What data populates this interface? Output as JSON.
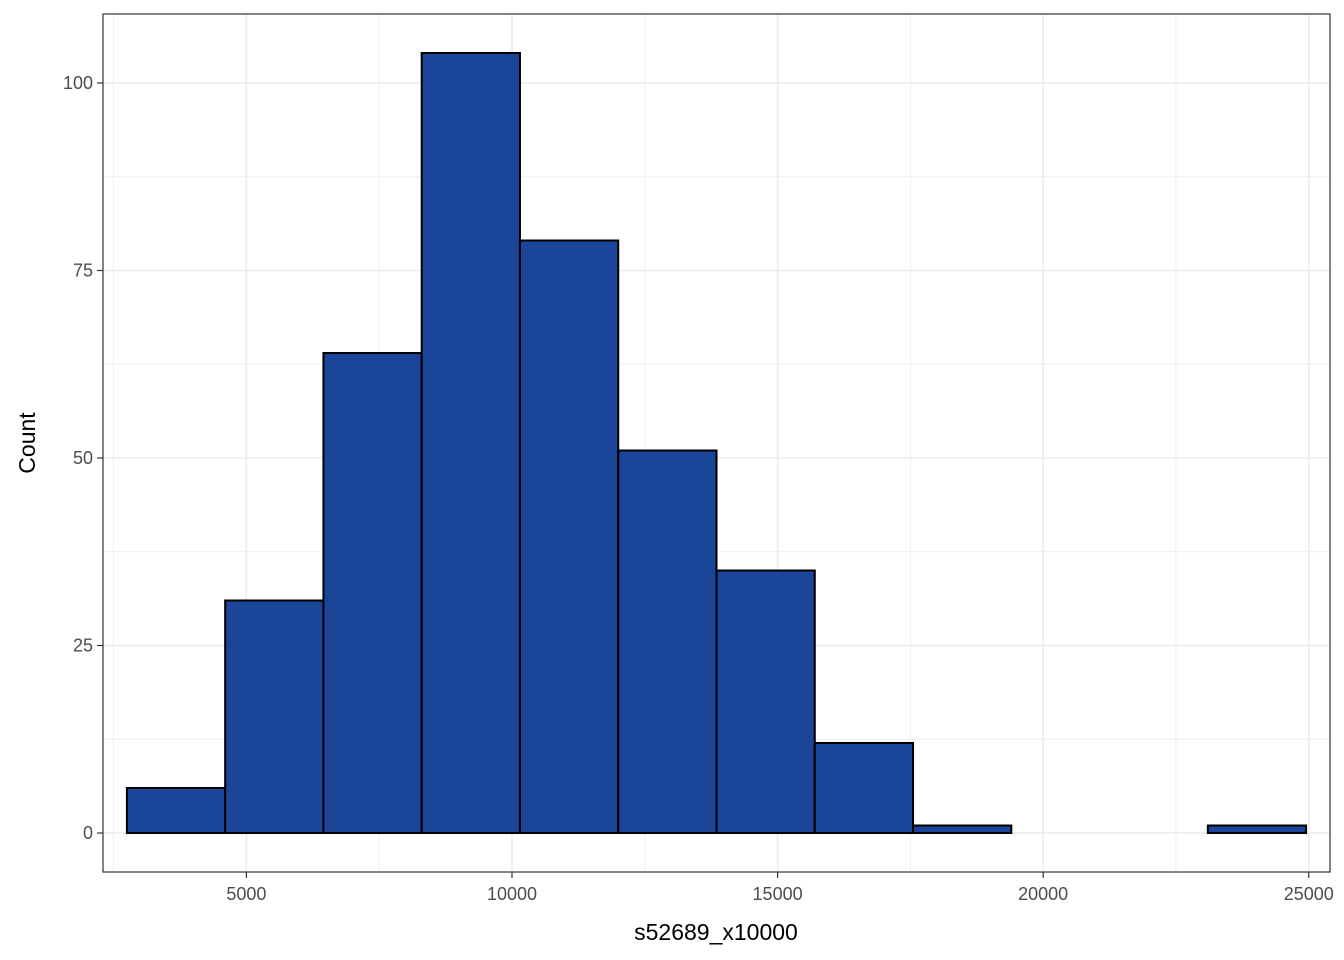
{
  "chart_data": {
    "type": "bar",
    "subtype": "histogram",
    "title": "",
    "xlabel": "s52689_x10000",
    "ylabel": "Count",
    "xlim": [
      2300,
      25400
    ],
    "ylim": [
      -5.2,
      109.2
    ],
    "x_ticks": [
      5000,
      10000,
      15000,
      20000,
      25000
    ],
    "x_tick_labels": [
      "5000",
      "10000",
      "15000",
      "20000",
      "25000"
    ],
    "y_ticks": [
      0,
      25,
      50,
      75,
      100
    ],
    "y_tick_labels": [
      "0",
      "25",
      "50",
      "75",
      "100"
    ],
    "bins": [
      {
        "x0": 2750,
        "x1": 4600,
        "count": 6
      },
      {
        "x0": 4600,
        "x1": 6450,
        "count": 31
      },
      {
        "x0": 6450,
        "x1": 8300,
        "count": 64
      },
      {
        "x0": 8300,
        "x1": 10150,
        "count": 104
      },
      {
        "x0": 10150,
        "x1": 12000,
        "count": 79
      },
      {
        "x0": 12000,
        "x1": 13850,
        "count": 51
      },
      {
        "x0": 13850,
        "x1": 15700,
        "count": 35
      },
      {
        "x0": 15700,
        "x1": 17550,
        "count": 12
      },
      {
        "x0": 17550,
        "x1": 19400,
        "count": 1
      },
      {
        "x0": 19400,
        "x1": 21250,
        "count": 0
      },
      {
        "x0": 21250,
        "x1": 23100,
        "count": 0
      },
      {
        "x0": 23100,
        "x1": 24950,
        "count": 1
      }
    ],
    "grid": true,
    "legend": "none",
    "colors": {
      "bar_fill": "#1a4599",
      "bar_stroke": "#000000",
      "grid": "#ebebeb",
      "panel_border": "#333333"
    }
  }
}
